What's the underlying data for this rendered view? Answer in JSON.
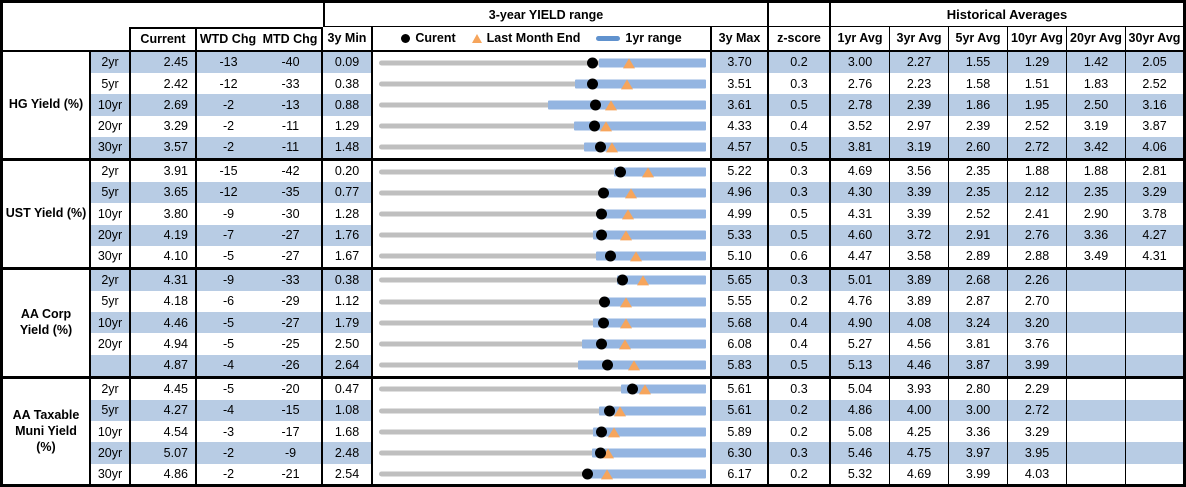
{
  "header": {
    "chart_title": "3-year YIELD range",
    "hist_title": "Historical Averages",
    "col_current": "Current",
    "col_wtd": "WTD Chg",
    "col_mtd": "MTD Chg",
    "col_3y_min": "3y Min",
    "col_3y_max": "3y Max",
    "col_zscore": "z-score",
    "avg_cols": [
      "1yr Avg",
      "3yr Avg",
      "5yr Avg",
      "10yr Avg",
      "20yr Avg",
      "30yr Avg"
    ],
    "legend": {
      "current": "Curent",
      "last_month": "Last Month End",
      "range": "1yr range"
    }
  },
  "colors": {
    "row_shade": "#B8CCE4",
    "range_bar": "#94B5E1",
    "legend_bar": "#6092CE",
    "track": "#BFBFBF",
    "marker_current": "#000000",
    "marker_last_month": "#F6A55C",
    "border": "#000000"
  },
  "chart_data": {
    "type": "table",
    "title": "3-year YIELD range with historical averages",
    "notes": "Each row shows a dot-plot: gray track spans 3y Min to 3y Max, blue bar is the 1yr range (high equals 3y Max in every row), black dot is current yield, orange triangle is last month end yield. WTD/MTD changes are in basis points.",
    "groups": [
      {
        "name": "HG Yield (%)",
        "rows": [
          {
            "tenor": "2yr",
            "current": 2.45,
            "wtd": -13,
            "mtd": -40,
            "min": 0.09,
            "max": 3.7,
            "z": "0.2",
            "last_month": 2.85,
            "yr1_low": 2.52,
            "yr1_high": 3.7,
            "avgs": [
              "3.00",
              "2.27",
              "1.55",
              "1.29",
              "1.42",
              "2.05"
            ]
          },
          {
            "tenor": "5yr",
            "current": 2.42,
            "wtd": -12,
            "mtd": -33,
            "min": 0.38,
            "max": 3.51,
            "z": "0.3",
            "last_month": 2.75,
            "yr1_low": 2.26,
            "yr1_high": 3.51,
            "avgs": [
              "2.76",
              "2.23",
              "1.58",
              "1.51",
              "1.83",
              "2.52"
            ]
          },
          {
            "tenor": "10yr",
            "current": 2.69,
            "wtd": -2,
            "mtd": -13,
            "min": 0.88,
            "max": 3.61,
            "z": "0.5",
            "last_month": 2.82,
            "yr1_low": 2.29,
            "yr1_high": 3.61,
            "avgs": [
              "2.78",
              "2.39",
              "1.86",
              "1.95",
              "2.50",
              "3.16"
            ]
          },
          {
            "tenor": "20yr",
            "current": 3.29,
            "wtd": -2,
            "mtd": -11,
            "min": 1.29,
            "max": 4.33,
            "z": "0.4",
            "last_month": 3.4,
            "yr1_low": 3.1,
            "yr1_high": 4.33,
            "avgs": [
              "3.52",
              "2.97",
              "2.39",
              "2.52",
              "3.19",
              "3.87"
            ]
          },
          {
            "tenor": "30yr",
            "current": 3.57,
            "wtd": -2,
            "mtd": -11,
            "min": 1.48,
            "max": 4.57,
            "z": "0.5",
            "last_month": 3.68,
            "yr1_low": 3.42,
            "yr1_high": 4.57,
            "avgs": [
              "3.81",
              "3.19",
              "2.60",
              "2.72",
              "3.42",
              "4.06"
            ]
          }
        ]
      },
      {
        "name": "UST Yield (%)",
        "rows": [
          {
            "tenor": "2yr",
            "current": 3.91,
            "wtd": -15,
            "mtd": -42,
            "min": 0.2,
            "max": 5.22,
            "z": "0.3",
            "last_month": 4.33,
            "yr1_low": 3.8,
            "yr1_high": 5.22,
            "avgs": [
              "4.69",
              "3.56",
              "2.35",
              "1.88",
              "1.88",
              "2.81"
            ]
          },
          {
            "tenor": "5yr",
            "current": 3.65,
            "wtd": -12,
            "mtd": -35,
            "min": 0.77,
            "max": 4.96,
            "z": "0.3",
            "last_month": 4.0,
            "yr1_low": 3.63,
            "yr1_high": 4.96,
            "avgs": [
              "4.30",
              "3.39",
              "2.35",
              "2.12",
              "2.35",
              "3.29"
            ]
          },
          {
            "tenor": "10yr",
            "current": 3.8,
            "wtd": -9,
            "mtd": -30,
            "min": 1.28,
            "max": 4.99,
            "z": "0.5",
            "last_month": 4.1,
            "yr1_low": 3.75,
            "yr1_high": 4.99,
            "avgs": [
              "4.31",
              "3.39",
              "2.52",
              "2.41",
              "2.90",
              "3.78"
            ]
          },
          {
            "tenor": "20yr",
            "current": 4.19,
            "wtd": -7,
            "mtd": -27,
            "min": 1.76,
            "max": 5.33,
            "z": "0.5",
            "last_month": 4.46,
            "yr1_low": 4.1,
            "yr1_high": 5.33,
            "avgs": [
              "4.60",
              "3.72",
              "2.91",
              "2.76",
              "3.36",
              "4.27"
            ]
          },
          {
            "tenor": "30yr",
            "current": 4.1,
            "wtd": -5,
            "mtd": -27,
            "min": 1.67,
            "max": 5.1,
            "z": "0.6",
            "last_month": 4.37,
            "yr1_low": 3.95,
            "yr1_high": 5.1,
            "avgs": [
              "4.47",
              "3.58",
              "2.89",
              "2.88",
              "3.49",
              "4.31"
            ]
          }
        ]
      },
      {
        "name": "AA Corp Yield (%)",
        "rows": [
          {
            "tenor": "2yr",
            "current": 4.31,
            "wtd": -9,
            "mtd": -33,
            "min": 0.38,
            "max": 5.65,
            "z": "0.3",
            "last_month": 4.64,
            "yr1_low": 4.21,
            "yr1_high": 5.65,
            "avgs": [
              "5.01",
              "3.89",
              "2.68",
              "2.26",
              "",
              ""
            ]
          },
          {
            "tenor": "5yr",
            "current": 4.18,
            "wtd": -6,
            "mtd": -29,
            "min": 1.12,
            "max": 5.55,
            "z": "0.2",
            "last_month": 4.47,
            "yr1_low": 4.13,
            "yr1_high": 5.55,
            "avgs": [
              "4.76",
              "3.89",
              "2.87",
              "2.70",
              "",
              ""
            ]
          },
          {
            "tenor": "10yr",
            "current": 4.46,
            "wtd": -5,
            "mtd": -27,
            "min": 1.79,
            "max": 5.68,
            "z": "0.4",
            "last_month": 4.73,
            "yr1_low": 4.34,
            "yr1_high": 5.68,
            "avgs": [
              "4.90",
              "4.08",
              "3.24",
              "3.20",
              "",
              ""
            ]
          },
          {
            "tenor": "20yr",
            "current": 4.94,
            "wtd": -5,
            "mtd": -25,
            "min": 2.5,
            "max": 6.08,
            "z": "0.4",
            "last_month": 5.19,
            "yr1_low": 4.72,
            "yr1_high": 6.08,
            "avgs": [
              "5.27",
              "4.56",
              "3.81",
              "3.76",
              "",
              ""
            ]
          },
          {
            "tenor": "",
            "current": 4.87,
            "wtd": -4,
            "mtd": -26,
            "min": 2.64,
            "max": 5.83,
            "z": "0.5",
            "last_month": 5.13,
            "yr1_low": 4.58,
            "yr1_high": 5.83,
            "avgs": [
              "5.13",
              "4.46",
              "3.87",
              "3.99",
              "",
              ""
            ]
          }
        ]
      },
      {
        "name": "AA Taxable Muni Yield (%)",
        "rows": [
          {
            "tenor": "2yr",
            "current": 4.45,
            "wtd": -5,
            "mtd": -20,
            "min": 0.47,
            "max": 5.61,
            "z": "0.3",
            "last_month": 4.65,
            "yr1_low": 4.28,
            "yr1_high": 5.61,
            "avgs": [
              "5.04",
              "3.93",
              "2.80",
              "2.29",
              "",
              ""
            ]
          },
          {
            "tenor": "5yr",
            "current": 4.27,
            "wtd": -4,
            "mtd": -15,
            "min": 1.08,
            "max": 5.61,
            "z": "0.2",
            "last_month": 4.42,
            "yr1_low": 4.13,
            "yr1_high": 5.61,
            "avgs": [
              "4.86",
              "4.00",
              "3.00",
              "2.72",
              "",
              ""
            ]
          },
          {
            "tenor": "10yr",
            "current": 4.54,
            "wtd": -3,
            "mtd": -17,
            "min": 1.68,
            "max": 5.89,
            "z": "0.2",
            "last_month": 4.71,
            "yr1_low": 4.44,
            "yr1_high": 5.89,
            "avgs": [
              "5.08",
              "4.25",
              "3.36",
              "3.29",
              "",
              ""
            ]
          },
          {
            "tenor": "20yr",
            "current": 5.07,
            "wtd": -2,
            "mtd": -9,
            "min": 2.48,
            "max": 6.3,
            "z": "0.3",
            "last_month": 5.16,
            "yr1_low": 4.97,
            "yr1_high": 6.3,
            "avgs": [
              "5.46",
              "4.75",
              "3.97",
              "3.95",
              "",
              ""
            ]
          },
          {
            "tenor": "30yr",
            "current": 4.86,
            "wtd": -2,
            "mtd": -21,
            "min": 2.54,
            "max": 6.17,
            "z": "0.2",
            "last_month": 5.07,
            "yr1_low": 4.83,
            "yr1_high": 6.17,
            "avgs": [
              "5.32",
              "4.69",
              "3.99",
              "4.03",
              "",
              ""
            ]
          }
        ]
      }
    ]
  }
}
